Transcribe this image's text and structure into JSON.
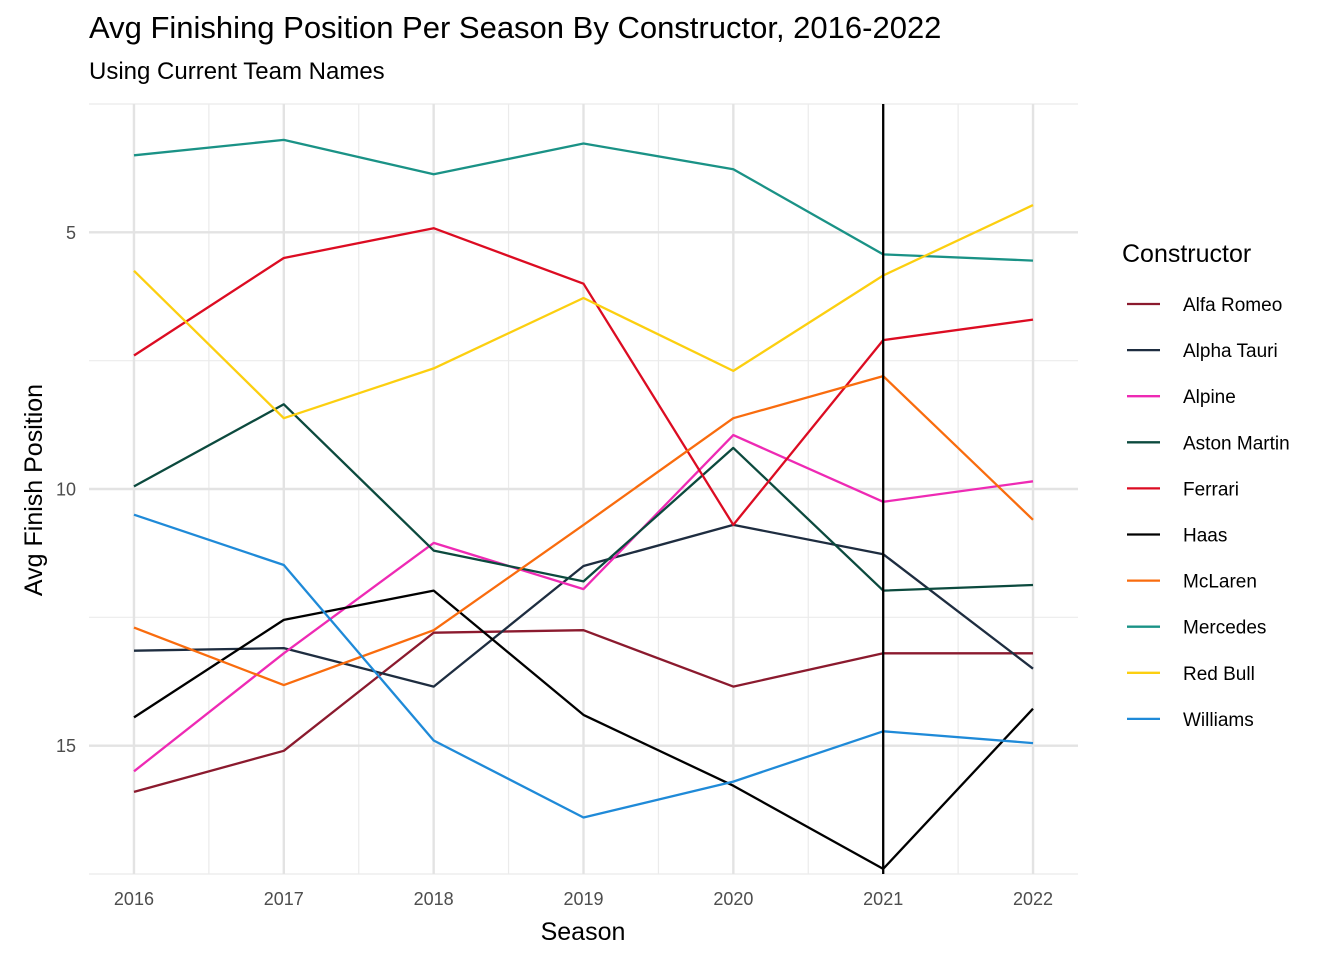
{
  "chart_data": {
    "type": "line",
    "title": "Avg Finishing Position Per Season By Constructor, 2016-2022",
    "subtitle": "Using Current Team Names",
    "xlabel": "Season",
    "ylabel": "Avg Finish Position",
    "x": [
      2016,
      2017,
      2018,
      2019,
      2020,
      2021,
      2022
    ],
    "xlim": [
      2015.7,
      2022.3
    ],
    "ylim": [
      17.5,
      2.5
    ],
    "y_reversed": true,
    "y_ticks": [
      5,
      10,
      15
    ],
    "grid": true,
    "vline": {
      "x": 2021
    },
    "legend": {
      "title": "Constructor",
      "placement": "right"
    },
    "series": [
      {
        "name": "Alfa Romeo",
        "color": "#8b1a2e",
        "values": [
          15.9,
          15.1,
          12.8,
          12.75,
          13.85,
          13.2,
          13.2
        ]
      },
      {
        "name": "Alpha Tauri",
        "color": "#1e2d40",
        "values": [
          13.15,
          13.1,
          13.85,
          11.5,
          10.7,
          11.27,
          13.5
        ]
      },
      {
        "name": "Alpine",
        "color": "#ee2ab4",
        "values": [
          15.5,
          13.2,
          11.05,
          11.95,
          8.95,
          10.25,
          9.85
        ]
      },
      {
        "name": "Aston Martin",
        "color": "#0c4a3e",
        "values": [
          9.95,
          8.35,
          11.2,
          11.8,
          9.2,
          11.98,
          11.87
        ]
      },
      {
        "name": "Ferrari",
        "color": "#dc0c22",
        "values": [
          7.4,
          5.5,
          4.92,
          6.0,
          10.7,
          7.1,
          6.7
        ]
      },
      {
        "name": "Haas",
        "color": "#000000",
        "values": [
          14.45,
          12.55,
          11.98,
          14.4,
          15.78,
          17.4,
          14.28
        ]
      },
      {
        "name": "McLaren",
        "color": "#f96c0e",
        "values": [
          12.7,
          13.82,
          12.75,
          10.7,
          8.62,
          7.8,
          10.6
        ]
      },
      {
        "name": "Mercedes",
        "color": "#1a9286",
        "values": [
          3.5,
          3.2,
          3.87,
          3.27,
          3.77,
          5.43,
          5.55
        ]
      },
      {
        "name": "Red Bull",
        "color": "#fccf10",
        "values": [
          5.75,
          8.62,
          7.65,
          6.28,
          7.7,
          5.84,
          4.47
        ]
      },
      {
        "name": "Williams",
        "color": "#1f8ad8",
        "values": [
          10.5,
          11.48,
          14.9,
          16.4,
          15.7,
          14.72,
          14.95
        ]
      }
    ]
  }
}
